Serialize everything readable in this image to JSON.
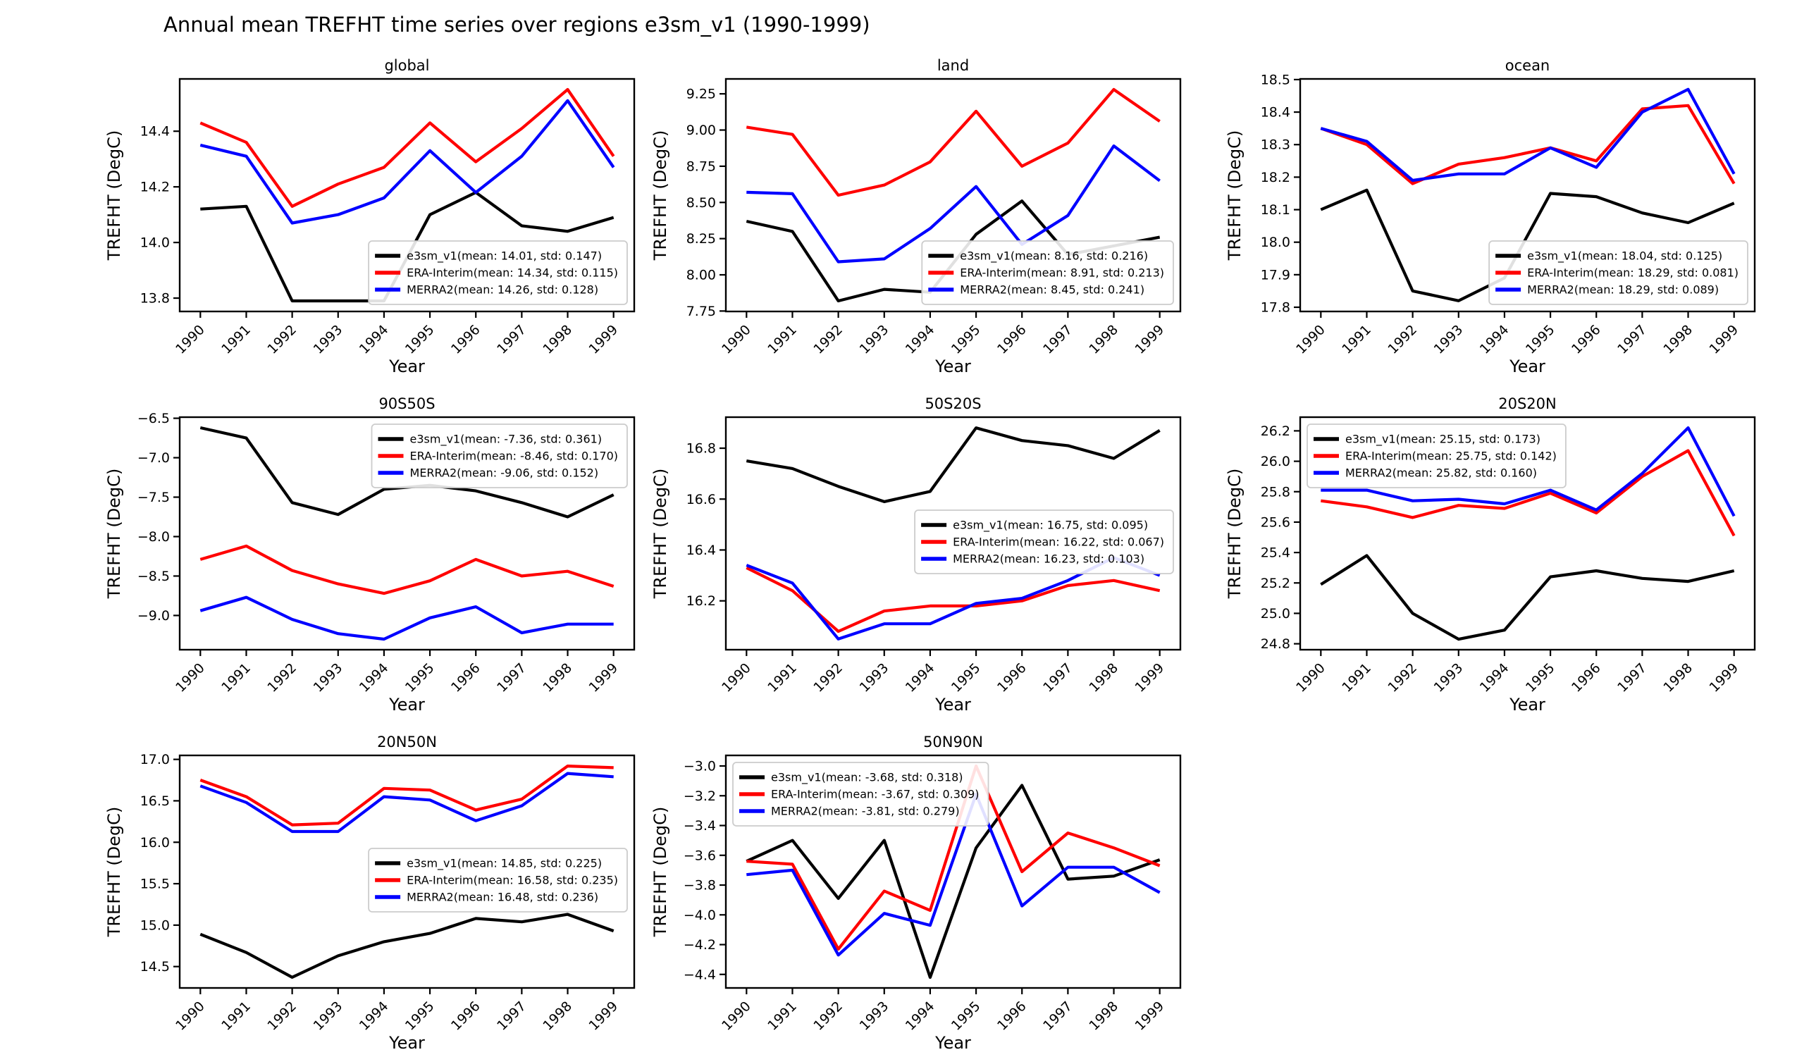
{
  "figure": {
    "title": "Annual mean TREFHT time series over regions e3sm_v1 (1990-1999)",
    "background_color": "#ffffff",
    "axis_color": "#000000"
  },
  "colors": {
    "e3sm_v1": "#000000",
    "ERA-Interim": "#ff0000",
    "MERRA2": "#0000ff",
    "legend_border": "#cccccc"
  },
  "chart_data": [
    {
      "type": "line",
      "title": "global",
      "xlabel": "Year",
      "ylabel": "TREFHT (DegC)",
      "x": [
        1990,
        1991,
        1992,
        1993,
        1994,
        1995,
        1996,
        1997,
        1998,
        1999
      ],
      "xtick_labels": [
        "1990",
        "1991",
        "1992",
        "1993",
        "1994",
        "1995",
        "1996",
        "1997",
        "1998",
        "1999"
      ],
      "yticks": [
        13.8,
        14.0,
        14.2,
        14.4
      ],
      "ytick_labels": [
        "13.8",
        "14.0",
        "14.2",
        "14.4"
      ],
      "ylim": [
        13.752,
        14.588
      ],
      "grid": false,
      "legend_pos": "lower right",
      "series": [
        {
          "name": "e3sm_v1",
          "label": "e3sm_v1(mean: 14.01, std: 0.147)",
          "mean": 14.01,
          "std": 0.147,
          "color": "#000000",
          "values": [
            14.12,
            14.13,
            13.79,
            13.79,
            13.79,
            14.1,
            14.18,
            14.06,
            14.04,
            14.09
          ]
        },
        {
          "name": "ERA-Interim",
          "label": "ERA-Interim(mean: 14.34, std: 0.115)",
          "mean": 14.34,
          "std": 0.115,
          "color": "#ff0000",
          "values": [
            14.43,
            14.36,
            14.13,
            14.21,
            14.27,
            14.43,
            14.29,
            14.41,
            14.55,
            14.31
          ]
        },
        {
          "name": "MERRA2",
          "label": "MERRA2(mean: 14.26, std: 0.128)",
          "mean": 14.26,
          "std": 0.128,
          "color": "#0000ff",
          "values": [
            14.35,
            14.31,
            14.07,
            14.1,
            14.16,
            14.33,
            14.18,
            14.31,
            14.51,
            14.27
          ]
        }
      ]
    },
    {
      "type": "line",
      "title": "land",
      "xlabel": "Year",
      "ylabel": "TREFHT (DegC)",
      "x": [
        1990,
        1991,
        1992,
        1993,
        1994,
        1995,
        1996,
        1997,
        1998,
        1999
      ],
      "xtick_labels": [
        "1990",
        "1991",
        "1992",
        "1993",
        "1994",
        "1995",
        "1996",
        "1997",
        "1998",
        "1999"
      ],
      "yticks": [
        7.75,
        8.0,
        8.25,
        8.5,
        8.75,
        9.0,
        9.25
      ],
      "ytick_labels": [
        "7.75",
        "8.00",
        "8.25",
        "8.50",
        "8.75",
        "9.00",
        "9.25"
      ],
      "ylim": [
        7.747,
        9.353
      ],
      "grid": false,
      "legend_pos": "lower right",
      "series": [
        {
          "name": "e3sm_v1",
          "label": "e3sm_v1(mean: 8.16, std: 0.216)",
          "mean": 8.16,
          "std": 0.216,
          "color": "#000000",
          "values": [
            8.37,
            8.3,
            7.82,
            7.9,
            7.88,
            8.28,
            8.51,
            8.14,
            8.2,
            8.26
          ]
        },
        {
          "name": "ERA-Interim",
          "label": "ERA-Interim(mean: 8.91, std: 0.213)",
          "mean": 8.91,
          "std": 0.213,
          "color": "#ff0000",
          "values": [
            9.02,
            8.97,
            8.55,
            8.62,
            8.78,
            9.13,
            8.75,
            8.91,
            9.28,
            9.06
          ]
        },
        {
          "name": "MERRA2",
          "label": "MERRA2(mean: 8.45, std: 0.241)",
          "mean": 8.45,
          "std": 0.241,
          "color": "#0000ff",
          "values": [
            8.57,
            8.56,
            8.09,
            8.11,
            8.32,
            8.61,
            8.21,
            8.41,
            8.89,
            8.65
          ]
        }
      ]
    },
    {
      "type": "line",
      "title": "ocean",
      "xlabel": "Year",
      "ylabel": "TREFHT (DegC)",
      "x": [
        1990,
        1991,
        1992,
        1993,
        1994,
        1995,
        1996,
        1997,
        1998,
        1999
      ],
      "xtick_labels": [
        "1990",
        "1991",
        "1992",
        "1993",
        "1994",
        "1995",
        "1996",
        "1997",
        "1998",
        "1999"
      ],
      "yticks": [
        17.8,
        17.9,
        18.0,
        18.1,
        18.2,
        18.3,
        18.4,
        18.5
      ],
      "ytick_labels": [
        "17.8",
        "17.9",
        "18.0",
        "18.1",
        "18.2",
        "18.3",
        "18.4",
        "18.5"
      ],
      "ylim": [
        17.787,
        18.502
      ],
      "grid": false,
      "legend_pos": "lower right",
      "series": [
        {
          "name": "e3sm_v1",
          "label": "e3sm_v1(mean: 18.04, std: 0.125)",
          "mean": 18.04,
          "std": 0.125,
          "color": "#000000",
          "values": [
            18.1,
            18.16,
            17.85,
            17.82,
            17.89,
            18.15,
            18.14,
            18.09,
            18.06,
            18.12
          ]
        },
        {
          "name": "ERA-Interim",
          "label": "ERA-Interim(mean: 18.29, std: 0.081)",
          "mean": 18.29,
          "std": 0.081,
          "color": "#ff0000",
          "values": [
            18.35,
            18.3,
            18.18,
            18.24,
            18.26,
            18.29,
            18.25,
            18.41,
            18.42,
            18.18
          ]
        },
        {
          "name": "MERRA2",
          "label": "MERRA2(mean: 18.29, std: 0.089)",
          "mean": 18.29,
          "std": 0.089,
          "color": "#0000ff",
          "values": [
            18.35,
            18.31,
            18.19,
            18.21,
            18.21,
            18.29,
            18.23,
            18.4,
            18.47,
            18.21
          ]
        }
      ]
    },
    {
      "type": "line",
      "title": "90S50S",
      "xlabel": "Year",
      "ylabel": "TREFHT (DegC)",
      "x": [
        1990,
        1991,
        1992,
        1993,
        1994,
        1995,
        1996,
        1997,
        1998,
        1999
      ],
      "xtick_labels": [
        "1990",
        "1991",
        "1992",
        "1993",
        "1994",
        "1995",
        "1996",
        "1997",
        "1998",
        "1999"
      ],
      "yticks": [
        -9.0,
        -8.5,
        -8.0,
        -7.5,
        -7.0,
        -6.5
      ],
      "ytick_labels": [
        "−9.0",
        "−8.5",
        "−8.0",
        "−7.5",
        "−7.0",
        "−6.5"
      ],
      "ylim": [
        -9.434,
        -6.486
      ],
      "grid": false,
      "legend_pos": "upper right",
      "series": [
        {
          "name": "e3sm_v1",
          "label": "e3sm_v1(mean: -7.36, std: 0.361)",
          "mean": -7.36,
          "std": 0.361,
          "color": "#000000",
          "values": [
            -6.62,
            -6.75,
            -7.57,
            -7.72,
            -7.4,
            -7.35,
            -7.42,
            -7.57,
            -7.75,
            -7.47
          ]
        },
        {
          "name": "ERA-Interim",
          "label": "ERA-Interim(mean: -8.46, std: 0.170)",
          "mean": -8.46,
          "std": 0.17,
          "color": "#ff0000",
          "values": [
            -8.29,
            -8.12,
            -8.43,
            -8.6,
            -8.72,
            -8.56,
            -8.29,
            -8.5,
            -8.44,
            -8.63
          ]
        },
        {
          "name": "MERRA2",
          "label": "MERRA2(mean: -9.06, std: 0.152)",
          "mean": -9.06,
          "std": 0.152,
          "color": "#0000ff",
          "values": [
            -8.94,
            -8.77,
            -9.05,
            -9.23,
            -9.3,
            -9.03,
            -8.89,
            -9.22,
            -9.11,
            -9.11
          ]
        }
      ]
    },
    {
      "type": "line",
      "title": "50S20S",
      "xlabel": "Year",
      "ylabel": "TREFHT (DegC)",
      "x": [
        1990,
        1991,
        1992,
        1993,
        1994,
        1995,
        1996,
        1997,
        1998,
        1999
      ],
      "xtick_labels": [
        "1990",
        "1991",
        "1992",
        "1993",
        "1994",
        "1995",
        "1996",
        "1997",
        "1998",
        "1999"
      ],
      "yticks": [
        16.2,
        16.4,
        16.6,
        16.8
      ],
      "ytick_labels": [
        "16.2",
        "16.4",
        "16.6",
        "16.8"
      ],
      "ylim": [
        16.008,
        16.922
      ],
      "grid": false,
      "legend_pos": "center right",
      "series": [
        {
          "name": "e3sm_v1",
          "label": "e3sm_v1(mean: 16.75, std: 0.095)",
          "mean": 16.75,
          "std": 0.095,
          "color": "#000000",
          "values": [
            16.75,
            16.72,
            16.65,
            16.59,
            16.63,
            16.88,
            16.83,
            16.81,
            16.76,
            16.87
          ]
        },
        {
          "name": "ERA-Interim",
          "label": "ERA-Interim(mean: 16.22, std: 0.067)",
          "mean": 16.22,
          "std": 0.067,
          "color": "#ff0000",
          "values": [
            16.33,
            16.24,
            16.08,
            16.16,
            16.18,
            16.18,
            16.2,
            16.26,
            16.28,
            16.24
          ]
        },
        {
          "name": "MERRA2",
          "label": "MERRA2(mean: 16.23, std: 0.103)",
          "mean": 16.23,
          "std": 0.103,
          "color": "#0000ff",
          "values": [
            16.34,
            16.27,
            16.05,
            16.11,
            16.11,
            16.19,
            16.21,
            16.28,
            16.37,
            16.3
          ]
        }
      ]
    },
    {
      "type": "line",
      "title": "20S20N",
      "xlabel": "Year",
      "ylabel": "TREFHT (DegC)",
      "x": [
        1990,
        1991,
        1992,
        1993,
        1994,
        1995,
        1996,
        1997,
        1998,
        1999
      ],
      "xtick_labels": [
        "1990",
        "1991",
        "1992",
        "1993",
        "1994",
        "1995",
        "1996",
        "1997",
        "1998",
        "1999"
      ],
      "yticks": [
        24.8,
        25.0,
        25.2,
        25.4,
        25.6,
        25.8,
        26.0,
        26.2
      ],
      "ytick_labels": [
        "24.8",
        "25.0",
        "25.2",
        "25.4",
        "25.6",
        "25.8",
        "26.0",
        "26.2"
      ],
      "ylim": [
        24.761,
        26.29
      ],
      "grid": false,
      "legend_pos": "upper left",
      "series": [
        {
          "name": "e3sm_v1",
          "label": "e3sm_v1(mean: 25.15, std: 0.173)",
          "mean": 25.15,
          "std": 0.173,
          "color": "#000000",
          "values": [
            25.19,
            25.38,
            25.0,
            24.83,
            24.89,
            25.24,
            25.28,
            25.23,
            25.21,
            25.28
          ]
        },
        {
          "name": "ERA-Interim",
          "label": "ERA-Interim(mean: 25.75, std: 0.142)",
          "mean": 25.75,
          "std": 0.142,
          "color": "#ff0000",
          "values": [
            25.74,
            25.7,
            25.63,
            25.71,
            25.69,
            25.79,
            25.66,
            25.9,
            26.07,
            25.51
          ]
        },
        {
          "name": "MERRA2",
          "label": "MERRA2(mean: 25.82, std: 0.160)",
          "mean": 25.82,
          "std": 0.16,
          "color": "#0000ff",
          "values": [
            25.81,
            25.81,
            25.74,
            25.75,
            25.72,
            25.81,
            25.68,
            25.92,
            26.22,
            25.64
          ]
        }
      ]
    },
    {
      "type": "line",
      "title": "20N50N",
      "xlabel": "Year",
      "ylabel": "TREFHT (DegC)",
      "x": [
        1990,
        1991,
        1992,
        1993,
        1994,
        1995,
        1996,
        1997,
        1998,
        1999
      ],
      "xtick_labels": [
        "1990",
        "1991",
        "1992",
        "1993",
        "1994",
        "1995",
        "1996",
        "1997",
        "1998",
        "1999"
      ],
      "yticks": [
        14.5,
        15.0,
        15.5,
        16.0,
        16.5,
        17.0
      ],
      "ytick_labels": [
        "14.5",
        "15.0",
        "15.5",
        "16.0",
        "16.5",
        "17.0"
      ],
      "ylim": [
        14.242,
        17.048
      ],
      "grid": false,
      "legend_pos": "center right",
      "series": [
        {
          "name": "e3sm_v1",
          "label": "e3sm_v1(mean: 14.85, std: 0.225)",
          "mean": 14.85,
          "std": 0.225,
          "color": "#000000",
          "values": [
            14.89,
            14.67,
            14.37,
            14.63,
            14.8,
            14.9,
            15.08,
            15.04,
            15.13,
            14.93
          ]
        },
        {
          "name": "ERA-Interim",
          "label": "ERA-Interim(mean: 16.58, std: 0.235)",
          "mean": 16.58,
          "std": 0.235,
          "color": "#ff0000",
          "values": [
            16.75,
            16.55,
            16.21,
            16.23,
            16.65,
            16.63,
            16.39,
            16.52,
            16.92,
            16.9
          ]
        },
        {
          "name": "MERRA2",
          "label": "MERRA2(mean: 16.48, std: 0.236)",
          "mean": 16.48,
          "std": 0.236,
          "color": "#0000ff",
          "values": [
            16.68,
            16.48,
            16.13,
            16.13,
            16.55,
            16.51,
            16.26,
            16.44,
            16.83,
            16.79
          ]
        }
      ]
    },
    {
      "type": "line",
      "title": "50N90N",
      "xlabel": "Year",
      "ylabel": "TREFHT (DegC)",
      "x": [
        1990,
        1991,
        1992,
        1993,
        1994,
        1995,
        1996,
        1997,
        1998,
        1999
      ],
      "xtick_labels": [
        "1990",
        "1991",
        "1992",
        "1993",
        "1994",
        "1995",
        "1996",
        "1997",
        "1998",
        "1999"
      ],
      "yticks": [
        -4.4,
        -4.2,
        -4.0,
        -3.8,
        -3.6,
        -3.4,
        -3.2,
        -3.0
      ],
      "ytick_labels": [
        "−4.4",
        "−4.2",
        "−4.0",
        "−3.8",
        "−3.6",
        "−3.4",
        "−3.2",
        "−3.0"
      ],
      "ylim": [
        -4.491,
        -2.929
      ],
      "grid": false,
      "legend_pos": "upper left",
      "series": [
        {
          "name": "e3sm_v1",
          "label": "e3sm_v1(mean: -3.68, std: 0.318)",
          "mean": -3.68,
          "std": 0.318,
          "color": "#000000",
          "values": [
            -3.64,
            -3.5,
            -3.89,
            -3.5,
            -4.42,
            -3.55,
            -3.13,
            -3.76,
            -3.74,
            -3.63
          ]
        },
        {
          "name": "ERA-Interim",
          "label": "ERA-Interim(mean: -3.67, std: 0.309)",
          "mean": -3.67,
          "std": 0.309,
          "color": "#ff0000",
          "values": [
            -3.64,
            -3.66,
            -4.23,
            -3.84,
            -3.97,
            -3.0,
            -3.71,
            -3.45,
            -3.55,
            -3.67
          ]
        },
        {
          "name": "MERRA2",
          "label": "MERRA2(mean: -3.81, std: 0.279)",
          "mean": -3.81,
          "std": 0.279,
          "color": "#0000ff",
          "values": [
            -3.73,
            -3.7,
            -4.27,
            -3.99,
            -4.07,
            -3.19,
            -3.94,
            -3.68,
            -3.68,
            -3.85
          ]
        }
      ]
    }
  ]
}
